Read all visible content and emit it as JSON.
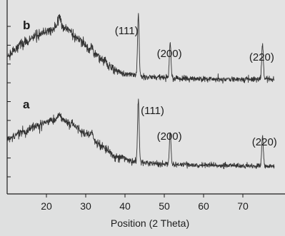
{
  "chart_data": {
    "type": "line",
    "xlabel": "Position (2 Theta)",
    "xlim": [
      10,
      78
    ],
    "x_ticks": [
      20,
      30,
      40,
      50,
      60,
      70
    ],
    "y_ticks_count": 9,
    "grid": false,
    "colors": {
      "background": "#dfe0e0",
      "plot_bg": "#e3e3e3",
      "trace": "#333333",
      "axis": "#1d1d1d"
    },
    "series": [
      {
        "name": "b",
        "baseline": [
          [
            10,
            0.58
          ],
          [
            14,
            0.44
          ],
          [
            18,
            0.34
          ],
          [
            21,
            0.28
          ],
          [
            23.3,
            0.22
          ],
          [
            25,
            0.26
          ],
          [
            28,
            0.38
          ],
          [
            32,
            0.56
          ],
          [
            36,
            0.72
          ],
          [
            40,
            0.8
          ],
          [
            45,
            0.83
          ],
          [
            55,
            0.85
          ],
          [
            65,
            0.86
          ],
          [
            78,
            0.86
          ]
        ],
        "noise": 0.022,
        "peaks": [
          {
            "x": 43.4,
            "height": 0.73,
            "width": 0.2
          },
          {
            "x": 51.5,
            "height": 0.42,
            "width": 0.2
          },
          {
            "x": 75.0,
            "height": 0.42,
            "width": 0.2
          },
          {
            "x": 31.6,
            "height": 0.09,
            "width": 0.25
          },
          {
            "x": 35.1,
            "height": 0.08,
            "width": 0.25
          },
          {
            "x": 23.3,
            "height": 0.09,
            "width": 0.3
          }
        ],
        "labels": [
          {
            "text": "(111)",
            "x": 40.4
          },
          {
            "text": "(200)",
            "x": 51.3
          },
          {
            "text": "(220)",
            "x": 74.8
          }
        ]
      },
      {
        "name": "a",
        "baseline": [
          [
            10,
            0.52
          ],
          [
            14,
            0.42
          ],
          [
            18,
            0.33
          ],
          [
            21,
            0.28
          ],
          [
            23.3,
            0.24
          ],
          [
            26,
            0.3
          ],
          [
            30,
            0.44
          ],
          [
            34,
            0.6
          ],
          [
            38,
            0.74
          ],
          [
            42,
            0.8
          ],
          [
            48,
            0.83
          ],
          [
            60,
            0.85
          ],
          [
            78,
            0.86
          ]
        ],
        "noise": 0.022,
        "peaks": [
          {
            "x": 43.4,
            "height": 0.8,
            "width": 0.2
          },
          {
            "x": 51.5,
            "height": 0.42,
            "width": 0.2
          },
          {
            "x": 75.0,
            "height": 0.38,
            "width": 0.2
          },
          {
            "x": 31.6,
            "height": 0.08,
            "width": 0.25
          },
          {
            "x": 23.3,
            "height": 0.07,
            "width": 0.3
          }
        ],
        "labels": [
          {
            "text": "(111)",
            "x": 47.0
          },
          {
            "text": "(200)",
            "x": 51.3
          },
          {
            "text": "(220)",
            "x": 75.5
          }
        ]
      }
    ]
  }
}
